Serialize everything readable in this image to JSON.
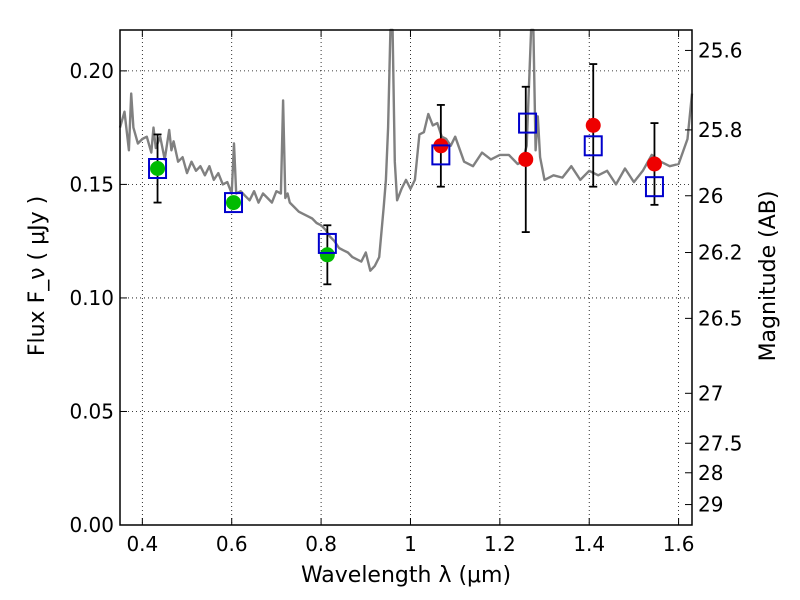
{
  "chart_data": {
    "type": "scatter",
    "title": "",
    "xlabel": "Wavelength  λ (μm)",
    "ylabel": "Flux  F_ν  ( μJy )",
    "ylabel_right": "Magnitude (AB)",
    "xlim": [
      0.35,
      1.63
    ],
    "ylim": [
      0.0,
      0.218
    ],
    "grid": true,
    "x_ticks": [
      0.4,
      0.6,
      0.8,
      1.0,
      1.2,
      1.4,
      1.6
    ],
    "x_tick_labels": [
      "0.4",
      "0.6",
      "0.8",
      "1",
      "1.2",
      "1.4",
      "1.6"
    ],
    "y_ticks": [
      0.0,
      0.05,
      0.1,
      0.15,
      0.2
    ],
    "y_tick_labels": [
      "0.00",
      "0.05",
      "0.10",
      "0.15",
      "0.20"
    ],
    "right_axis_ticks": [
      {
        "label": "25.6",
        "flux": 0.209
      },
      {
        "label": "25.8",
        "flux": 0.174
      },
      {
        "label": "26",
        "flux": 0.145
      },
      {
        "label": "26.2",
        "flux": 0.12
      },
      {
        "label": "26.5",
        "flux": 0.091
      },
      {
        "label": "27",
        "flux": 0.058
      },
      {
        "label": "27.5",
        "flux": 0.036
      },
      {
        "label": "28",
        "flux": 0.023
      },
      {
        "label": "29",
        "flux": 0.009
      }
    ],
    "colors": {
      "model": "#808080",
      "green": "#00bb00",
      "red": "#ee0000",
      "blue": "#0000cc",
      "error": "#000000"
    },
    "series": [
      {
        "kind": "model",
        "x": [
          0.35,
          0.36,
          0.37,
          0.375,
          0.38,
          0.39,
          0.4,
          0.41,
          0.42,
          0.425,
          0.43,
          0.44,
          0.45,
          0.46,
          0.465,
          0.47,
          0.48,
          0.49,
          0.5,
          0.51,
          0.52,
          0.53,
          0.54,
          0.55,
          0.56,
          0.57,
          0.58,
          0.59,
          0.6,
          0.605,
          0.61,
          0.62,
          0.63,
          0.64,
          0.65,
          0.66,
          0.67,
          0.68,
          0.69,
          0.7,
          0.71,
          0.715,
          0.72,
          0.725,
          0.73,
          0.74,
          0.75,
          0.76,
          0.77,
          0.78,
          0.79,
          0.8,
          0.81,
          0.82,
          0.83,
          0.84,
          0.85,
          0.86,
          0.87,
          0.88,
          0.89,
          0.9,
          0.91,
          0.92,
          0.93,
          0.94,
          0.945,
          0.95,
          0.955,
          0.96,
          0.965,
          0.97,
          0.98,
          0.99,
          1.0,
          1.01,
          1.02,
          1.03,
          1.04,
          1.05,
          1.06,
          1.07,
          1.08,
          1.09,
          1.1,
          1.12,
          1.14,
          1.16,
          1.18,
          1.2,
          1.22,
          1.24,
          1.25,
          1.26,
          1.27,
          1.275,
          1.28,
          1.285,
          1.29,
          1.3,
          1.32,
          1.34,
          1.36,
          1.38,
          1.4,
          1.42,
          1.44,
          1.46,
          1.48,
          1.5,
          1.52,
          1.54,
          1.56,
          1.58,
          1.6,
          1.62,
          1.63
        ],
        "y": [
          0.175,
          0.182,
          0.165,
          0.19,
          0.175,
          0.168,
          0.17,
          0.171,
          0.164,
          0.175,
          0.166,
          0.171,
          0.161,
          0.174,
          0.165,
          0.169,
          0.16,
          0.162,
          0.155,
          0.16,
          0.156,
          0.158,
          0.154,
          0.158,
          0.152,
          0.155,
          0.15,
          0.151,
          0.146,
          0.168,
          0.146,
          0.147,
          0.145,
          0.143,
          0.147,
          0.142,
          0.146,
          0.144,
          0.142,
          0.147,
          0.146,
          0.187,
          0.144,
          0.146,
          0.142,
          0.14,
          0.138,
          0.137,
          0.136,
          0.135,
          0.133,
          0.132,
          0.13,
          0.127,
          0.125,
          0.122,
          0.121,
          0.12,
          0.118,
          0.117,
          0.116,
          0.12,
          0.112,
          0.114,
          0.118,
          0.14,
          0.152,
          0.175,
          0.218,
          0.218,
          0.16,
          0.143,
          0.148,
          0.152,
          0.148,
          0.152,
          0.172,
          0.173,
          0.181,
          0.176,
          0.177,
          0.171,
          0.17,
          0.167,
          0.171,
          0.16,
          0.158,
          0.164,
          0.161,
          0.163,
          0.163,
          0.159,
          0.16,
          0.167,
          0.218,
          0.218,
          0.165,
          0.18,
          0.162,
          0.152,
          0.154,
          0.153,
          0.158,
          0.152,
          0.156,
          0.154,
          0.156,
          0.15,
          0.157,
          0.151,
          0.156,
          0.163,
          0.16,
          0.158,
          0.159,
          0.17,
          0.19
        ]
      },
      {
        "kind": "box",
        "x": [
          0.434,
          0.604,
          0.814,
          1.068,
          1.262,
          1.409,
          1.546
        ],
        "y": [
          0.157,
          0.142,
          0.124,
          0.163,
          0.177,
          0.167,
          0.149
        ]
      },
      {
        "kind": "point",
        "x": [
          0.434,
          0.604,
          0.814
        ],
        "y": [
          0.157,
          0.142,
          0.119
        ],
        "err": [
          0.015,
          0.0,
          0.013
        ],
        "color": "green"
      },
      {
        "kind": "point",
        "x": [
          1.068,
          1.258,
          1.409,
          1.546
        ],
        "y": [
          0.167,
          0.161,
          0.176,
          0.159
        ],
        "err": [
          0.018,
          0.032,
          0.027,
          0.018
        ],
        "color": "red"
      }
    ]
  }
}
